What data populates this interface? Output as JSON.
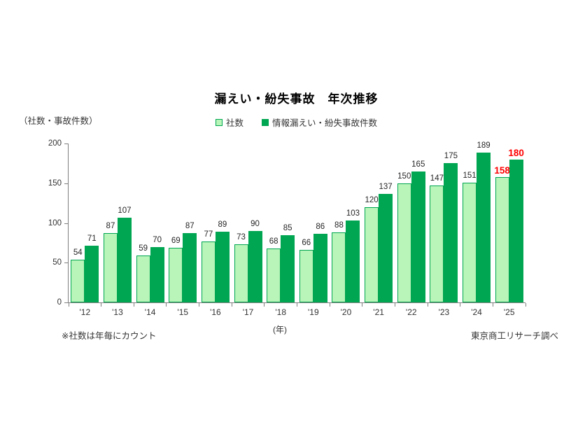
{
  "chart": {
    "y_unit_label": "（社数・事故件数）",
    "x_unit_label": "(年)",
    "footnote": "※社数は年毎にカウント",
    "source": "東京商工リサーチ調べ",
    "colors": {
      "light_green_fill": "#b9f5b9",
      "green": "#00a651",
      "highlight_red": "#ff0000",
      "axis_gray": "#7f7f7f",
      "text": "#333333"
    }
  },
  "chart_data": {
    "type": "bar",
    "title": "漏えい・紛失事故　年次推移",
    "categories": [
      "'12",
      "'13",
      "'14",
      "'15",
      "'16",
      "'17",
      "'18",
      "'19",
      "'20",
      "'21",
      "'22",
      "'23",
      "'24",
      "'25"
    ],
    "series": [
      {
        "name": "社数",
        "values": [
          54,
          87,
          59,
          69,
          77,
          73,
          68,
          66,
          88,
          120,
          150,
          147,
          151,
          158
        ],
        "fill": "#b9f5b9",
        "border": "#00a651"
      },
      {
        "name": "情報漏えい・紛失事故件数",
        "values": [
          71,
          107,
          70,
          87,
          89,
          90,
          85,
          86,
          103,
          137,
          165,
          175,
          189,
          180
        ],
        "fill": "#00a651",
        "border": "#00a651"
      }
    ],
    "xlabel": "(年)",
    "ylabel": "（社数・事故件数）",
    "ylim": [
      0,
      200
    ],
    "yticks": [
      0,
      50,
      100,
      150,
      200
    ],
    "grid": false,
    "legend_position": "top",
    "highlight_last_category": true,
    "highlight_color": "#ff0000"
  }
}
